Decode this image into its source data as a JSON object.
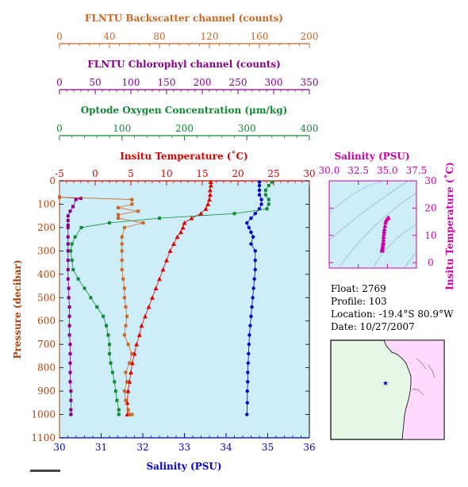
{
  "colors": {
    "backscatter": "#cc6622",
    "chlorophyll": "#880088",
    "oxygen": "#118833",
    "temperature": "#dd0000",
    "salinity": "#0000cc",
    "pressure_axis": "#aa4411",
    "ts_axis": "#cc00aa",
    "plot_bg": "#cdeef8",
    "land": "#ffd9ff",
    "sea": "#e6f7e6"
  },
  "info": {
    "float": "Float:  2769",
    "profile": "Profile:  103",
    "location": "Location:  -19.4°S  80.9°W",
    "date": "Date:  10/27/2007"
  },
  "chart_data": [
    {
      "type": "line",
      "title": "",
      "ylabel": "Pressure (decibar)",
      "ylim": [
        1100,
        0
      ],
      "yticks": [
        "0",
        "100",
        "200",
        "300",
        "400",
        "500",
        "600",
        "700",
        "800",
        "900",
        "1000",
        "1100"
      ],
      "axes": {
        "backscatter": {
          "label": "FLNTU Backscatter channel (counts)",
          "range": [
            0,
            200
          ],
          "ticks": [
            "0",
            "40",
            "80",
            "120",
            "160",
            "200"
          ]
        },
        "chlorophyll": {
          "label": "FLNTU Chlorophyl channel (counts)",
          "range": [
            0,
            350
          ],
          "ticks": [
            "0",
            "50",
            "100",
            "150",
            "200",
            "250",
            "300",
            "350"
          ]
        },
        "oxygen": {
          "label": "Optode Oxygen Concentration (μm/kg)",
          "range": [
            0,
            400
          ],
          "ticks": [
            "0",
            "100",
            "200",
            "300",
            "400"
          ]
        },
        "temperature": {
          "label": "Insitu Temperature (˚C)",
          "range": [
            -5,
            30
          ],
          "ticks": [
            "-5",
            "0",
            "5",
            "10",
            "15",
            "20",
            "25",
            "30"
          ]
        },
        "salinity": {
          "label": "Salinity (PSU)",
          "range": [
            30,
            36
          ],
          "ticks": [
            "30",
            "31",
            "32",
            "33",
            "34",
            "35",
            "36"
          ]
        }
      },
      "series": [
        {
          "key": "temperature",
          "marker": "triangle",
          "x": [
            16.2,
            16.2,
            16.1,
            16.1,
            16.0,
            15.8,
            15.5,
            14.8,
            13.5,
            12.5,
            12.3,
            12.0,
            11.5,
            11.0,
            10.5,
            10.0,
            9.5,
            9.0,
            8.5,
            8.0,
            7.5,
            7.0,
            6.5,
            6.2,
            5.8,
            5.5,
            5.2,
            5.0,
            4.8,
            4.6,
            4.5,
            4.5
          ],
          "p": [
            5,
            20,
            40,
            60,
            80,
            100,
            120,
            140,
            160,
            180,
            200,
            220,
            240,
            270,
            300,
            340,
            380,
            420,
            460,
            500,
            540,
            580,
            620,
            660,
            700,
            740,
            780,
            820,
            860,
            900,
            950,
            1000
          ]
        },
        {
          "key": "salinity",
          "marker": "circle",
          "x": [
            34.8,
            34.8,
            34.8,
            34.8,
            34.85,
            34.85,
            34.8,
            34.7,
            34.6,
            34.5,
            34.55,
            34.6,
            34.65,
            34.6,
            34.7,
            34.7,
            34.7,
            34.68,
            34.66,
            34.64,
            34.62,
            34.6,
            34.58,
            34.56,
            34.55,
            34.54,
            34.53,
            34.52,
            34.52,
            34.51,
            34.51,
            34.5
          ],
          "p": [
            5,
            20,
            40,
            60,
            80,
            100,
            120,
            140,
            160,
            180,
            200,
            220,
            240,
            270,
            300,
            340,
            380,
            420,
            460,
            500,
            540,
            580,
            620,
            660,
            700,
            740,
            780,
            820,
            860,
            900,
            950,
            1000
          ]
        },
        {
          "key": "oxygen",
          "marker": "square",
          "x": [
            340,
            335,
            330,
            330,
            335,
            335,
            332,
            280,
            160,
            80,
            35,
            25,
            20,
            18,
            20,
            22,
            30,
            40,
            50,
            60,
            70,
            75,
            78,
            80,
            80,
            82,
            85,
            88,
            90,
            92,
            95,
            95
          ],
          "p": [
            5,
            20,
            40,
            60,
            80,
            100,
            120,
            140,
            160,
            180,
            200,
            240,
            270,
            300,
            340,
            380,
            420,
            460,
            500,
            540,
            580,
            620,
            660,
            700,
            740,
            780,
            820,
            860,
            900,
            940,
            980,
            1000
          ]
        },
        {
          "key": "chlorophyll",
          "marker": "square",
          "x": [
            0,
            30,
            23,
            19,
            15,
            12,
            12,
            12,
            12,
            12,
            12,
            12,
            12,
            12,
            12,
            13,
            13,
            14,
            14,
            14,
            14,
            15,
            15,
            15,
            15,
            15,
            16,
            16,
            16,
            16,
            16,
            16
          ],
          "p": [
            70,
            75,
            80,
            110,
            130,
            150,
            170,
            190,
            200,
            240,
            270,
            300,
            340,
            380,
            420,
            460,
            500,
            540,
            580,
            620,
            660,
            700,
            740,
            780,
            820,
            860,
            900,
            940,
            980,
            1000,
            1000,
            1000
          ]
        },
        {
          "key": "backscatter",
          "marker": "square",
          "x": [
            0,
            58,
            58,
            47,
            63,
            47,
            47,
            67,
            52,
            50,
            50,
            50,
            50,
            50,
            51,
            52,
            52,
            53,
            54,
            53,
            52,
            55,
            58,
            56,
            53,
            54,
            52,
            53,
            55,
            56,
            58,
            57
          ],
          "p": [
            70,
            80,
            100,
            115,
            130,
            145,
            160,
            180,
            200,
            240,
            270,
            300,
            340,
            380,
            420,
            460,
            500,
            540,
            580,
            620,
            660,
            700,
            740,
            780,
            820,
            860,
            900,
            940,
            980,
            1000,
            1000,
            1000
          ]
        }
      ]
    },
    {
      "type": "scatter",
      "xlabel": "Salinity (PSU)",
      "ylabel": "Insitu Temperature (˚C)",
      "xlim": [
        30,
        37.5
      ],
      "ylim": [
        -2,
        30
      ],
      "xticks": [
        "30.0",
        "32.5",
        "35.0",
        "37.5"
      ],
      "yticks": [
        "0",
        "10",
        "20",
        "30"
      ],
      "points": [
        [
          35.1,
          16.5
        ],
        [
          35.0,
          16.2
        ],
        [
          34.9,
          15.6
        ],
        [
          34.85,
          14.8
        ],
        [
          34.8,
          13.5
        ],
        [
          34.75,
          12.3
        ],
        [
          34.72,
          11.4
        ],
        [
          34.7,
          10.5
        ],
        [
          34.68,
          9.5
        ],
        [
          34.66,
          8.5
        ],
        [
          34.65,
          7.5
        ],
        [
          34.62,
          6.8
        ],
        [
          34.6,
          6.0
        ],
        [
          34.58,
          5.5
        ],
        [
          34.56,
          5.0
        ],
        [
          34.55,
          4.6
        ],
        [
          34.54,
          4.4
        ]
      ]
    }
  ]
}
